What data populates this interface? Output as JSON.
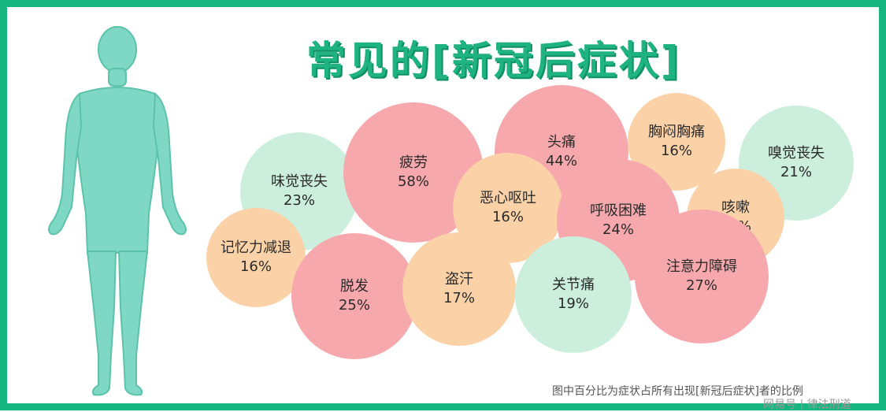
{
  "title": {
    "main": "常见的",
    "open": "[",
    "topic": "新冠后症状",
    "close": "]"
  },
  "colors": {
    "frame": "#17b57f",
    "title": "#1fb382",
    "body": "#7fd8c3",
    "high": "#f7a8ad",
    "mid": "#fbd2a8",
    "low": "#cceedd"
  },
  "symptoms": [
    {
      "name": "味觉丧失",
      "pct": "23%"
    },
    {
      "name": "疲劳",
      "pct": "58%"
    },
    {
      "name": "头痛",
      "pct": "44%"
    },
    {
      "name": "胸闷胸痛",
      "pct": "16%"
    },
    {
      "name": "嗅觉丧失",
      "pct": "21%"
    },
    {
      "name": "恶心呕吐",
      "pct": "16%"
    },
    {
      "name": "呼吸困难",
      "pct": "24%"
    },
    {
      "name": "咳嗽",
      "pct": "19%"
    },
    {
      "name": "记忆力减退",
      "pct": "16%"
    },
    {
      "name": "脱发",
      "pct": "25%"
    },
    {
      "name": "盗汗",
      "pct": "17%"
    },
    {
      "name": "关节痛",
      "pct": "19%"
    },
    {
      "name": "注意力障碍",
      "pct": "27%"
    }
  ],
  "footnote": "图中百分比为症状占所有出现[新冠后症状]者的比例",
  "watermark": "网易号 | 律法刑道"
}
